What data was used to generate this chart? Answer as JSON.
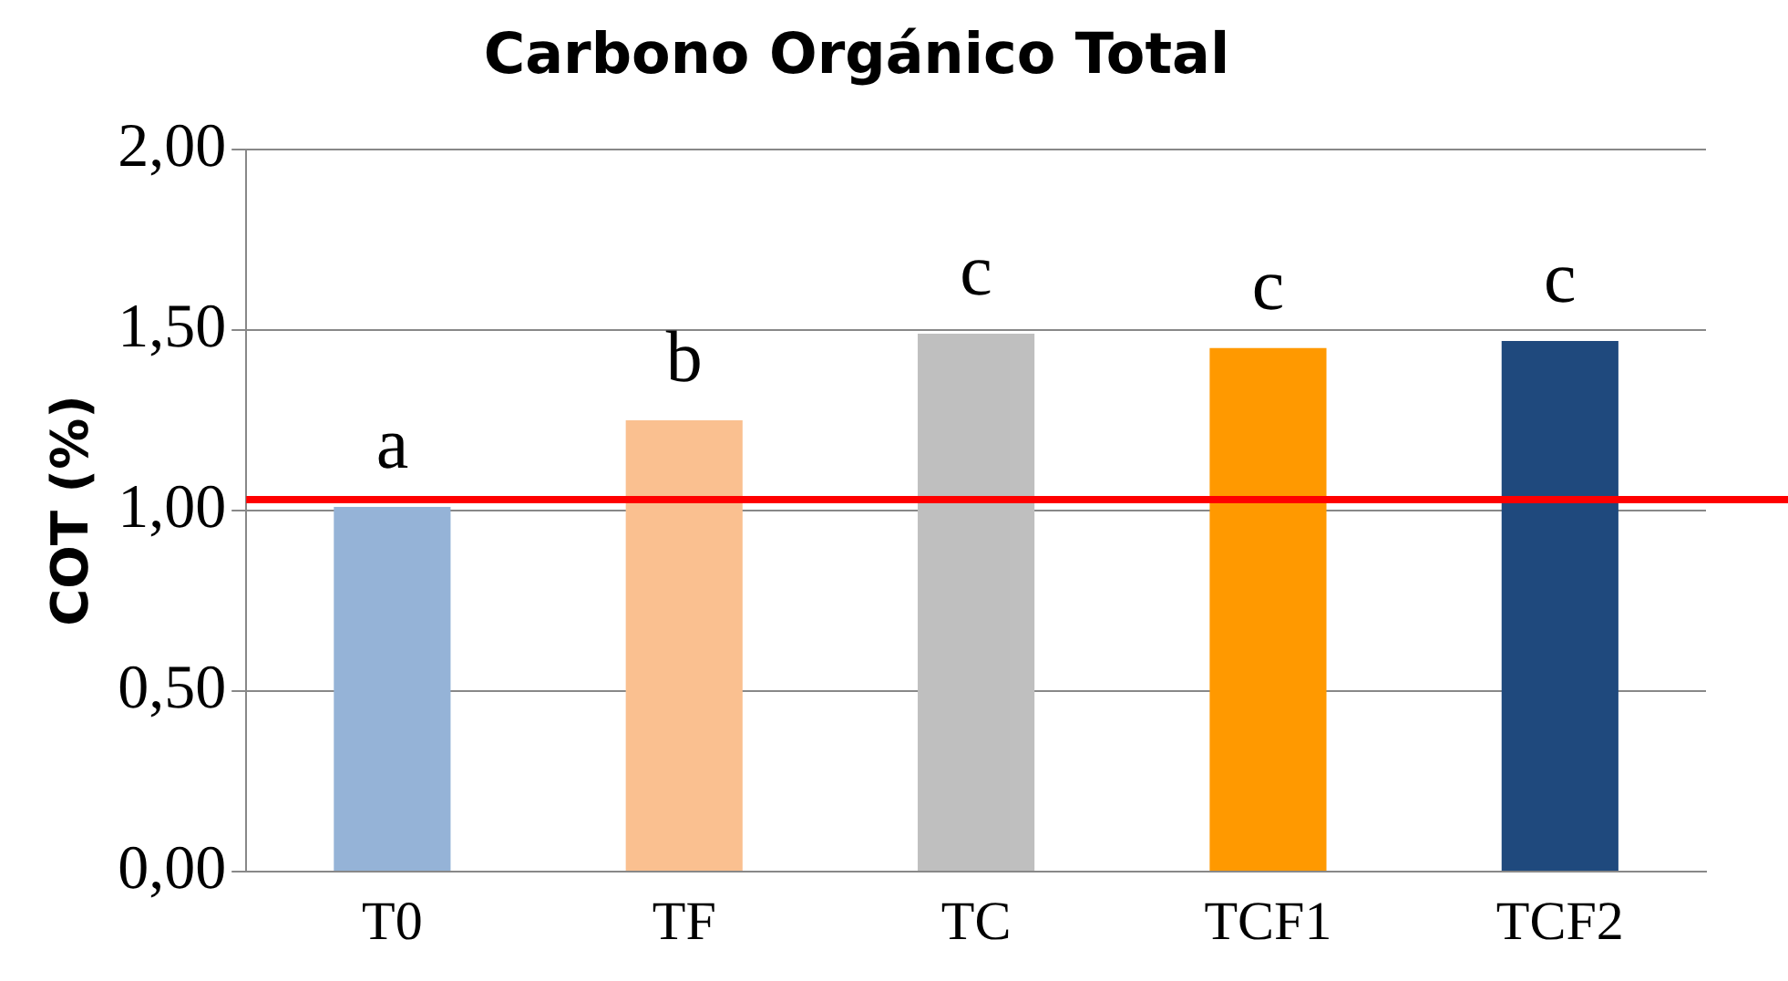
{
  "chart_data": {
    "type": "bar",
    "title": "Carbono Orgánico Total",
    "ylabel": "COT (%)",
    "categories": [
      "T0",
      "TF",
      "TC",
      "TCF1",
      "TCF2"
    ],
    "values": [
      1.01,
      1.25,
      1.49,
      1.45,
      1.47
    ],
    "colors": [
      "#95b3d7",
      "#fac090",
      "#bfbfbf",
      "#ff9900",
      "#1f497d"
    ],
    "ylim": [
      0,
      2
    ],
    "yticks": [
      {
        "value": 0,
        "label": "0,00"
      },
      {
        "value": 0.5,
        "label": "0,50"
      },
      {
        "value": 1,
        "label": "1,00"
      },
      {
        "value": 1.5,
        "label": "1,50"
      },
      {
        "value": 2,
        "label": "2,00"
      }
    ],
    "grid": "y",
    "legend": false,
    "ref_lines": [
      {
        "axis": "y",
        "value": 1.03,
        "color": "#ff0000"
      }
    ],
    "annotations": [
      {
        "text": "a",
        "x": "T0",
        "y": 1.01
      },
      {
        "text": "b",
        "x": "TF",
        "y": 1.25
      },
      {
        "text": "c",
        "x": "TC",
        "y": 1.49
      },
      {
        "text": "c",
        "x": "TCF1",
        "y": 1.45
      },
      {
        "text": "c",
        "x": "TCF2",
        "y": 1.47
      }
    ]
  }
}
